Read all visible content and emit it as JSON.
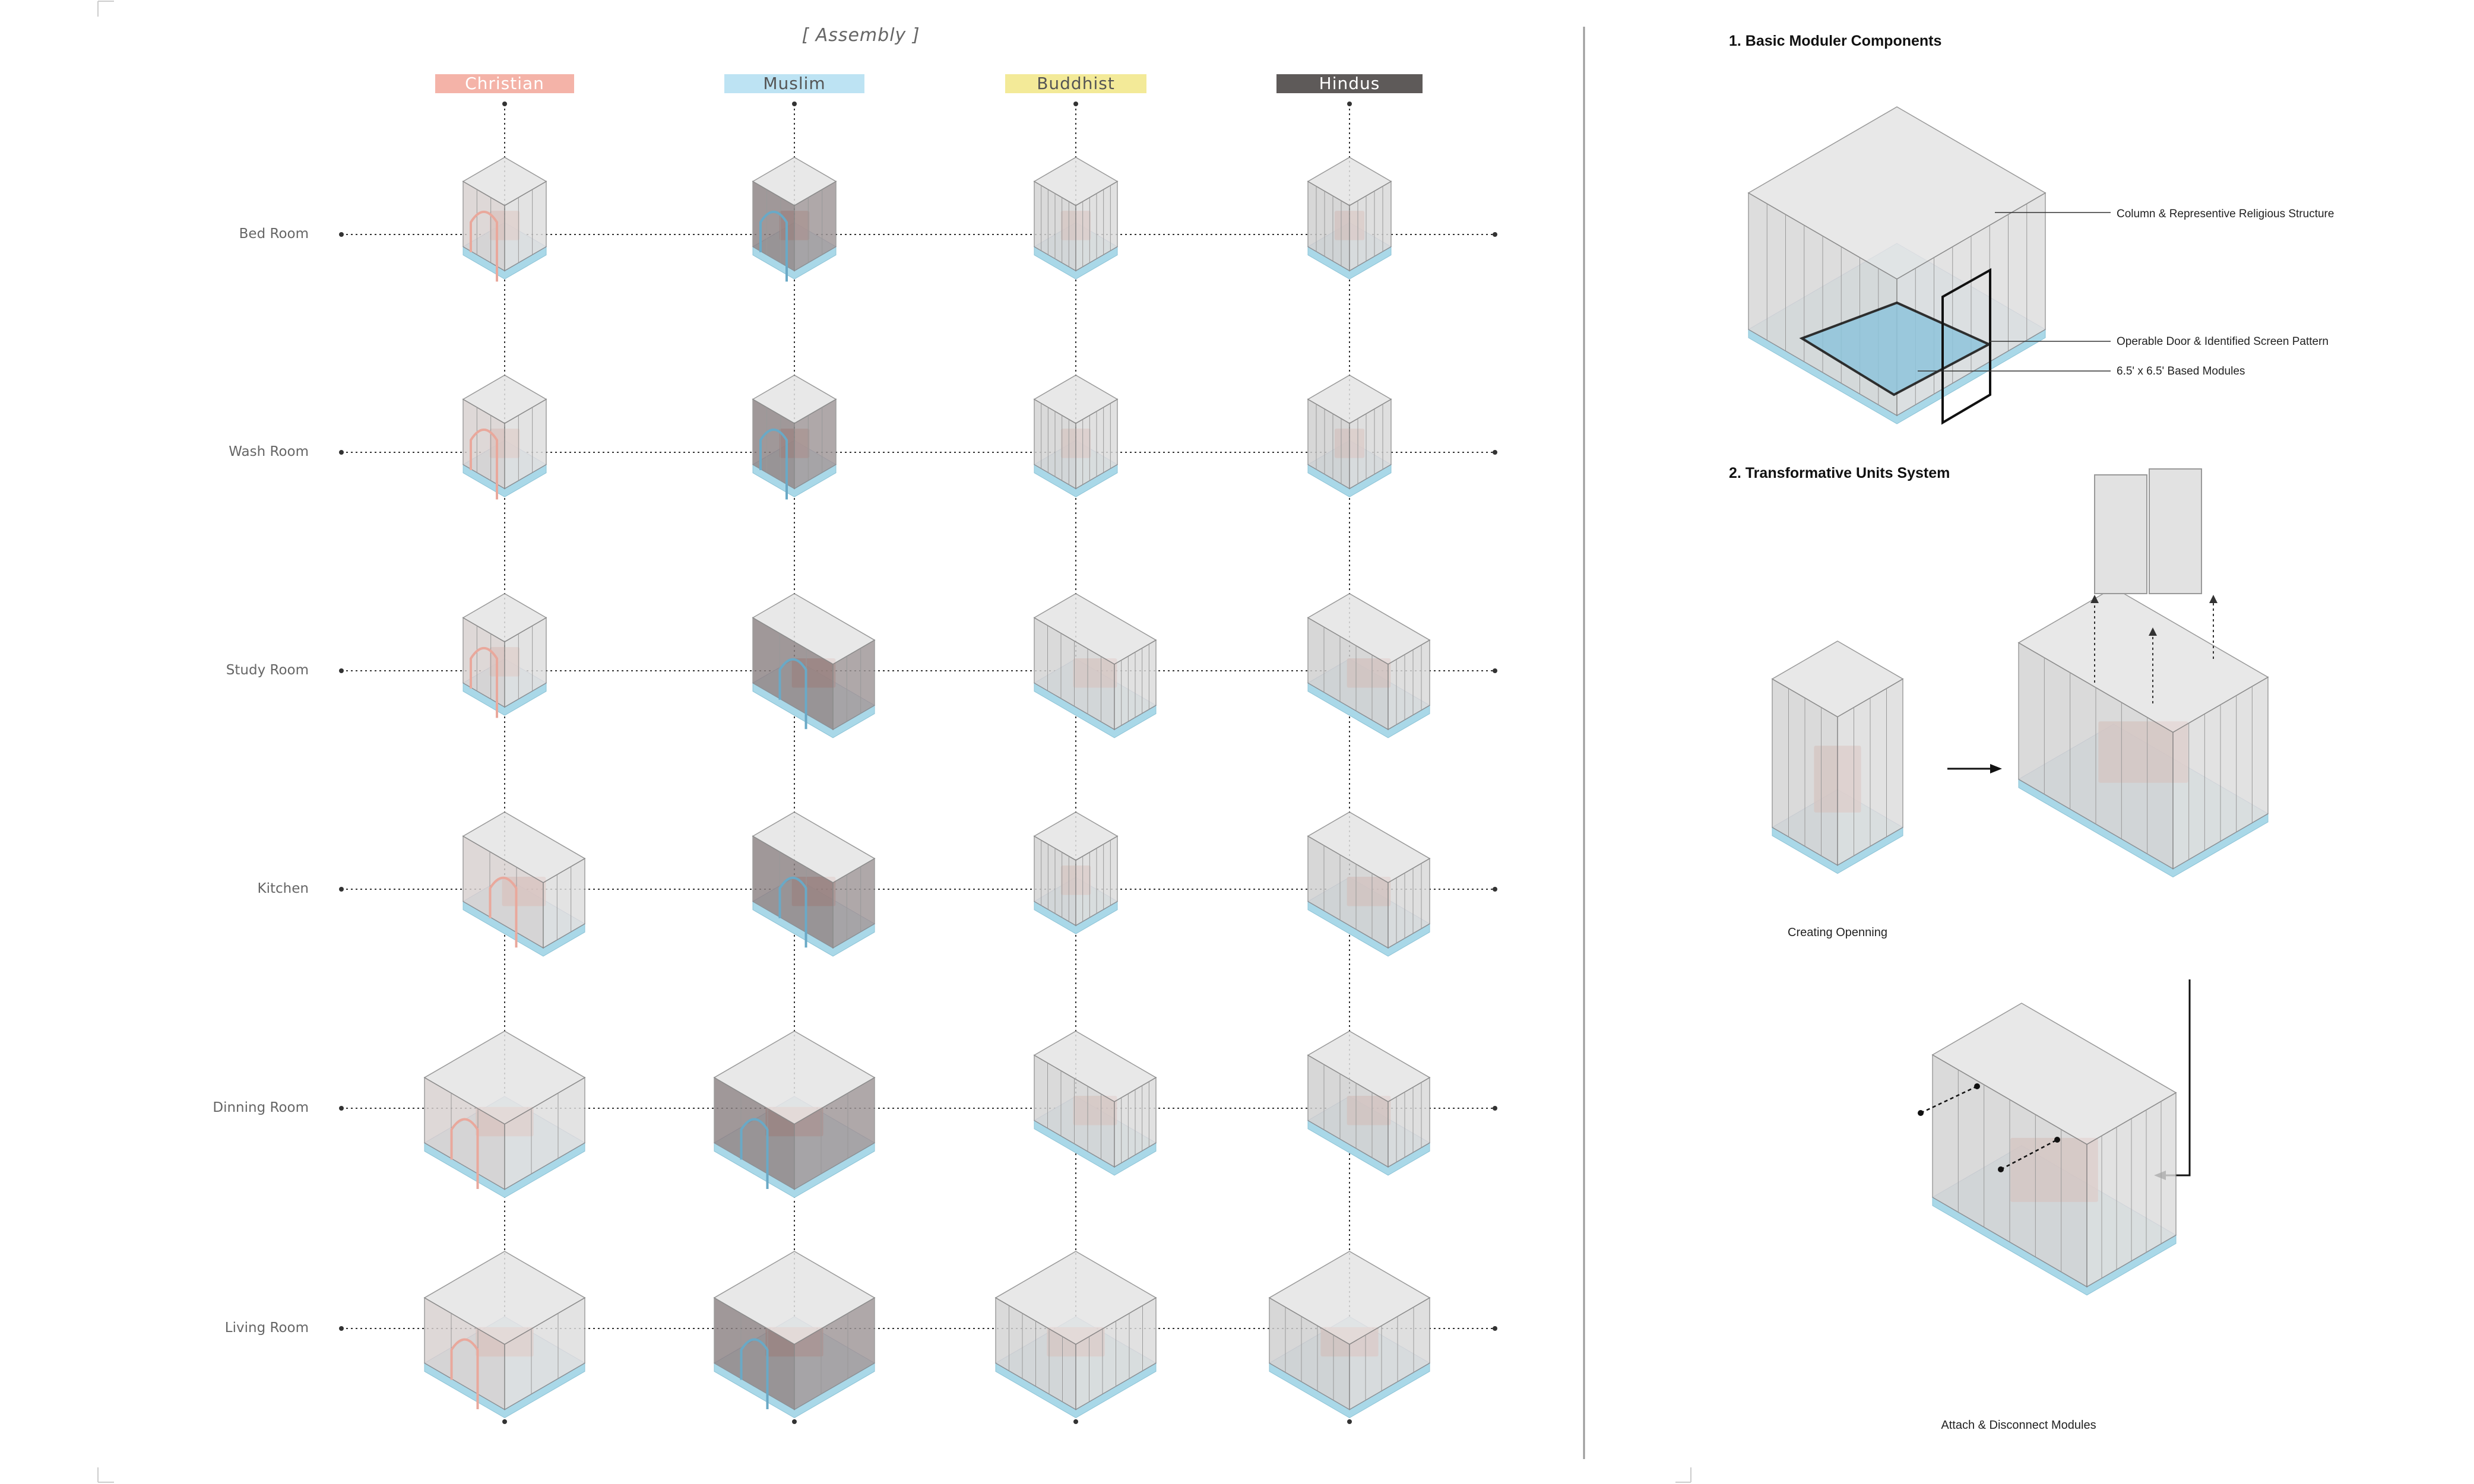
{
  "assembly_title": "[ Assembly ]",
  "columns": [
    {
      "label": "Christian",
      "color": "#f4b3a8",
      "text_color": "#ffffff"
    },
    {
      "label": "Muslim",
      "color": "#bde3f3",
      "text_color": "#555555"
    },
    {
      "label": "Buddhist",
      "color": "#f3ea98",
      "text_color": "#555555"
    },
    {
      "label": "Hindus",
      "color": "#5e5a59",
      "text_color": "#ffffff"
    }
  ],
  "rows": [
    {
      "label": "Bed Room"
    },
    {
      "label": "Wash Room"
    },
    {
      "label": "Study Room"
    },
    {
      "label": "Kitchen"
    },
    {
      "label": "Dinning Room"
    },
    {
      "label": "Living Room"
    }
  ],
  "components": {
    "title": "1. Basic Moduler Components",
    "annotations": [
      "Column & Representive Religious Structure",
      "Operable Door & Identified Screen Pattern",
      "6.5' x 6.5' Based Modules"
    ]
  },
  "transform": {
    "title": "2. Transformative Units System",
    "caption_opening": "Creating Openning",
    "caption_attach": "Attach & Disconnect Modules"
  },
  "colors": {
    "frame_gray": "#c9c9c9",
    "blue_base": "#a9d8e8",
    "salmon": "#e48a78",
    "dark_interior": "#6e6160"
  }
}
